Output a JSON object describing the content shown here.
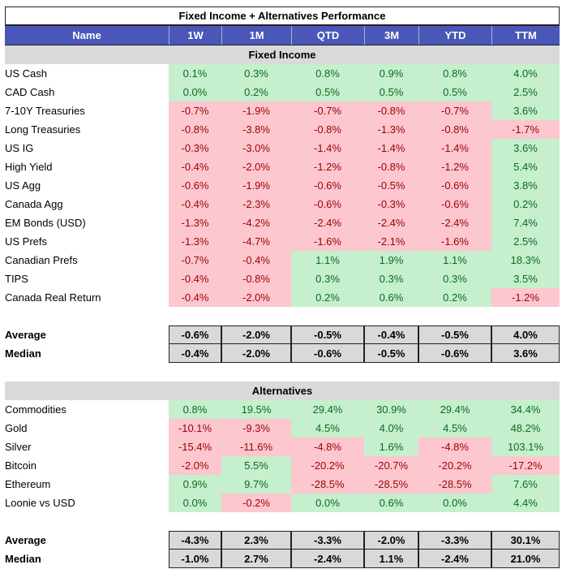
{
  "title": "Fixed Income + Alternatives Performance",
  "columns": [
    "Name",
    "1W",
    "1M",
    "QTD",
    "3M",
    "YTD",
    "TTM"
  ],
  "colors": {
    "header": "#4a57b8",
    "positive_bg": "#c6efce",
    "positive_text": "#0b6b1e",
    "negative_bg": "#fcc7ce",
    "negative_text": "#9c0006",
    "section_bg": "#d9d9d9"
  },
  "fixed_income": {
    "label": "Fixed Income",
    "rows": [
      {
        "name": "US Cash",
        "values": [
          "0.1%",
          "0.3%",
          "0.8%",
          "0.9%",
          "0.8%",
          "4.0%"
        ]
      },
      {
        "name": "CAD Cash",
        "values": [
          "0.0%",
          "0.2%",
          "0.5%",
          "0.5%",
          "0.5%",
          "2.5%"
        ]
      },
      {
        "name": "7-10Y Treasuries",
        "values": [
          "-0.7%",
          "-1.9%",
          "-0.7%",
          "-0.8%",
          "-0.7%",
          "3.6%"
        ]
      },
      {
        "name": "Long Treasuries",
        "values": [
          "-0.8%",
          "-3.8%",
          "-0.8%",
          "-1.3%",
          "-0.8%",
          "-1.7%"
        ]
      },
      {
        "name": "US IG",
        "values": [
          "-0.3%",
          "-3.0%",
          "-1.4%",
          "-1.4%",
          "-1.4%",
          "3.6%"
        ]
      },
      {
        "name": "High Yield",
        "values": [
          "-0.4%",
          "-2.0%",
          "-1.2%",
          "-0.8%",
          "-1.2%",
          "5.4%"
        ]
      },
      {
        "name": "US Agg",
        "values": [
          "-0.6%",
          "-1.9%",
          "-0.6%",
          "-0.5%",
          "-0.6%",
          "3.8%"
        ]
      },
      {
        "name": "Canada Agg",
        "values": [
          "-0.4%",
          "-2.3%",
          "-0.6%",
          "-0.3%",
          "-0.6%",
          "0.2%"
        ]
      },
      {
        "name": "EM Bonds (USD)",
        "values": [
          "-1.3%",
          "-4.2%",
          "-2.4%",
          "-2.4%",
          "-2.4%",
          "7.4%"
        ]
      },
      {
        "name": "US Prefs",
        "values": [
          "-1.3%",
          "-4.7%",
          "-1.6%",
          "-2.1%",
          "-1.6%",
          "2.5%"
        ]
      },
      {
        "name": "Canadian Prefs",
        "values": [
          "-0.7%",
          "-0.4%",
          "1.1%",
          "1.9%",
          "1.1%",
          "18.3%"
        ]
      },
      {
        "name": "TIPS",
        "values": [
          "-0.4%",
          "-0.8%",
          "0.3%",
          "0.3%",
          "0.3%",
          "3.5%"
        ]
      },
      {
        "name": "Canada Real Return",
        "values": [
          "-0.4%",
          "-2.0%",
          "0.2%",
          "0.6%",
          "0.2%",
          "-1.2%"
        ]
      }
    ],
    "stats": [
      {
        "name": "Average",
        "values": [
          "-0.6%",
          "-2.0%",
          "-0.5%",
          "-0.4%",
          "-0.5%",
          "4.0%"
        ]
      },
      {
        "name": "Median",
        "values": [
          "-0.4%",
          "-2.0%",
          "-0.6%",
          "-0.5%",
          "-0.6%",
          "3.6%"
        ]
      }
    ]
  },
  "alternatives": {
    "label": "Alternatives",
    "rows": [
      {
        "name": "Commodities",
        "values": [
          "0.8%",
          "19.5%",
          "29.4%",
          "30.9%",
          "29.4%",
          "34.4%"
        ]
      },
      {
        "name": "Gold",
        "values": [
          "-10.1%",
          "-9.3%",
          "4.5%",
          "4.0%",
          "4.5%",
          "48.2%"
        ]
      },
      {
        "name": "Silver",
        "values": [
          "-15.4%",
          "-11.6%",
          "-4.8%",
          "1.6%",
          "-4.8%",
          "103.1%"
        ]
      },
      {
        "name": "Bitcoin",
        "values": [
          "-2.0%",
          "5.5%",
          "-20.2%",
          "-20.7%",
          "-20.2%",
          "-17.2%"
        ]
      },
      {
        "name": "Ethereum",
        "values": [
          "0.9%",
          "9.7%",
          "-28.5%",
          "-28.5%",
          "-28.5%",
          "7.6%"
        ]
      },
      {
        "name": "Loonie vs USD",
        "values": [
          "0.0%",
          "-0.2%",
          "0.0%",
          "0.6%",
          "0.0%",
          "4.4%"
        ]
      }
    ],
    "stats": [
      {
        "name": "Average",
        "values": [
          "-4.3%",
          "2.3%",
          "-3.3%",
          "-2.0%",
          "-3.3%",
          "30.1%"
        ]
      },
      {
        "name": "Median",
        "values": [
          "-1.0%",
          "2.7%",
          "-2.4%",
          "1.1%",
          "-2.4%",
          "21.0%"
        ]
      }
    ]
  }
}
